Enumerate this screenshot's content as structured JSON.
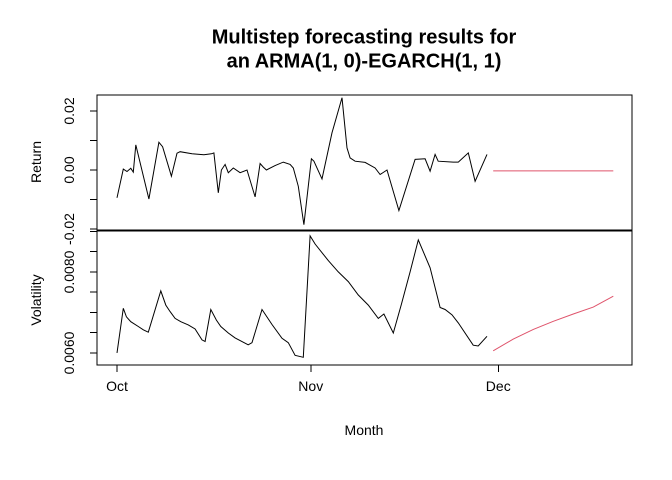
{
  "title": {
    "line1": "Multistep forecasting results for",
    "line2": "an ARMA(1, 0)-EGARCH(1, 1)"
  },
  "xaxis": {
    "label": "Month",
    "xlim": [
      -3.2,
      82.4
    ],
    "ticks": [
      {
        "value": 0,
        "label": "Oct"
      },
      {
        "value": 31,
        "label": "Nov"
      },
      {
        "value": 61,
        "label": "Dec"
      }
    ]
  },
  "colors": {
    "series_black": "#000000",
    "series_red": "#DF536B",
    "frame": "#000000"
  },
  "chart_data": [
    {
      "type": "line",
      "panel": "top",
      "ylabel": "Return",
      "ylim": [
        -0.0203,
        0.0254
      ],
      "yticks": [
        {
          "value": 0.02,
          "label": "0.02"
        },
        {
          "value": 0.01,
          "label": ""
        },
        {
          "value": 0.0,
          "label": "0.00"
        },
        {
          "value": -0.01,
          "label": ""
        },
        {
          "value": -0.02,
          "label": "-0.02"
        }
      ],
      "series": [
        {
          "name": "observed-return",
          "color": "#000000",
          "points": [
            [
              0,
              -0.0094
            ],
            [
              1,
              0.0003
            ],
            [
              1.6,
              -0.0005
            ],
            [
              2.2,
              0.0006
            ],
            [
              2.6,
              -0.0007
            ],
            [
              3,
              0.0085
            ],
            [
              5.1,
              -0.0098
            ],
            [
              6.7,
              0.0094
            ],
            [
              7.3,
              0.0079
            ],
            [
              8.7,
              -0.0021
            ],
            [
              9.6,
              0.0057
            ],
            [
              10.1,
              0.0062
            ],
            [
              12,
              0.0055
            ],
            [
              13.9,
              0.0052
            ],
            [
              15.1,
              0.0055
            ],
            [
              15.5,
              0.0058
            ],
            [
              16.2,
              -0.0077
            ],
            [
              16.7,
              0
            ],
            [
              17.3,
              0.0019
            ],
            [
              17.8,
              -0.0009
            ],
            [
              18.6,
              0.0007
            ],
            [
              19.7,
              -0.0009
            ],
            [
              20.8,
              0
            ],
            [
              22.1,
              -0.0091
            ],
            [
              22.9,
              0.0022
            ],
            [
              23.4,
              0.001
            ],
            [
              23.9,
              0
            ],
            [
              25.3,
              0.0015
            ],
            [
              26.6,
              0.0027
            ],
            [
              27.7,
              0.0019
            ],
            [
              28.2,
              0.0007
            ],
            [
              29,
              -0.0055
            ],
            [
              29.9,
              -0.0185
            ],
            [
              31.1,
              0.0038
            ],
            [
              31.5,
              0.003
            ],
            [
              32.8,
              -0.003
            ],
            [
              34.4,
              0.0126
            ],
            [
              36,
              0.0245
            ],
            [
              36.8,
              0.0075
            ],
            [
              37.3,
              0.0041
            ],
            [
              38.1,
              0.003
            ],
            [
              39.7,
              0.0026
            ],
            [
              41.3,
              0.0007
            ],
            [
              42.1,
              -0.0015
            ],
            [
              43.2,
              0
            ],
            [
              45.1,
              -0.0137
            ],
            [
              47.7,
              0.0036
            ],
            [
              49.3,
              0.0038
            ],
            [
              50.1,
              -0.0004
            ],
            [
              50.9,
              0.0053
            ],
            [
              51.4,
              0.003
            ],
            [
              53.8,
              0.0027
            ],
            [
              54.6,
              0.0027
            ],
            [
              56.2,
              0.0058
            ],
            [
              57.3,
              -0.0038
            ],
            [
              59.2,
              0.0053
            ]
          ]
        },
        {
          "name": "forecast-return",
          "color": "#DF536B",
          "points": [
            [
              60.2,
              -0.0003
            ],
            [
              79.4,
              -0.0003
            ]
          ]
        }
      ]
    },
    {
      "type": "line",
      "panel": "bottom",
      "ylabel": "Volatility",
      "ylim": [
        0.0057,
        0.00901
      ],
      "yticks": [
        {
          "value": 0.009,
          "label": ""
        },
        {
          "value": 0.0085,
          "label": ""
        },
        {
          "value": 0.008,
          "label": "0.0080"
        },
        {
          "value": 0.0075,
          "label": ""
        },
        {
          "value": 0.007,
          "label": ""
        },
        {
          "value": 0.0065,
          "label": ""
        },
        {
          "value": 0.006,
          "label": "0.0060"
        }
      ],
      "series": [
        {
          "name": "observed-volatility",
          "color": "#000000",
          "points": [
            [
              0,
              0.006
            ],
            [
              1,
              0.0071
            ],
            [
              1.5,
              0.00689
            ],
            [
              2.2,
              0.00677
            ],
            [
              3.4,
              0.00665
            ],
            [
              4.2,
              0.00657
            ],
            [
              5,
              0.00651
            ],
            [
              7,
              0.00753
            ],
            [
              7.8,
              0.00718
            ],
            [
              8.5,
              0.00702
            ],
            [
              9.3,
              0.00685
            ],
            [
              10.2,
              0.00677
            ],
            [
              11.4,
              0.00669
            ],
            [
              12.5,
              0.00659
            ],
            [
              13.6,
              0.00632
            ],
            [
              14.1,
              0.00628
            ],
            [
              15,
              0.00707
            ],
            [
              15.9,
              0.00681
            ],
            [
              16.6,
              0.00665
            ],
            [
              17.8,
              0.00649
            ],
            [
              18.9,
              0.00637
            ],
            [
              21,
              0.0062
            ],
            [
              21.6,
              0.00625
            ],
            [
              23.2,
              0.00707
            ],
            [
              24.8,
              0.0067
            ],
            [
              26.4,
              0.00636
            ],
            [
              27.4,
              0.00625
            ],
            [
              28.5,
              0.00594
            ],
            [
              29.8,
              0.00589
            ],
            [
              30.9,
              0.00889
            ],
            [
              31.7,
              0.00869
            ],
            [
              33.8,
              0.00828
            ],
            [
              35.4,
              0.008
            ],
            [
              37,
              0.00776
            ],
            [
              38.6,
              0.00743
            ],
            [
              40.2,
              0.00718
            ],
            [
              41.8,
              0.00685
            ],
            [
              42.7,
              0.00696
            ],
            [
              44.2,
              0.00649
            ],
            [
              45.5,
              0.0072
            ],
            [
              46.9,
              0.008
            ],
            [
              48.2,
              0.00879
            ],
            [
              50.1,
              0.0081
            ],
            [
              51.7,
              0.00712
            ],
            [
              52.5,
              0.00707
            ],
            [
              53.6,
              0.00694
            ],
            [
              54.6,
              0.00674
            ],
            [
              57,
              0.00619
            ],
            [
              57.8,
              0.00617
            ],
            [
              59.2,
              0.00641
            ]
          ]
        },
        {
          "name": "forecast-volatility",
          "color": "#DF536B",
          "points": [
            [
              60.2,
              0.00605
            ],
            [
              63.4,
              0.00634
            ],
            [
              66.6,
              0.00658
            ],
            [
              69.8,
              0.00678
            ],
            [
              73,
              0.00696
            ],
            [
              76.2,
              0.00713
            ],
            [
              79.4,
              0.0074
            ]
          ]
        }
      ]
    }
  ]
}
